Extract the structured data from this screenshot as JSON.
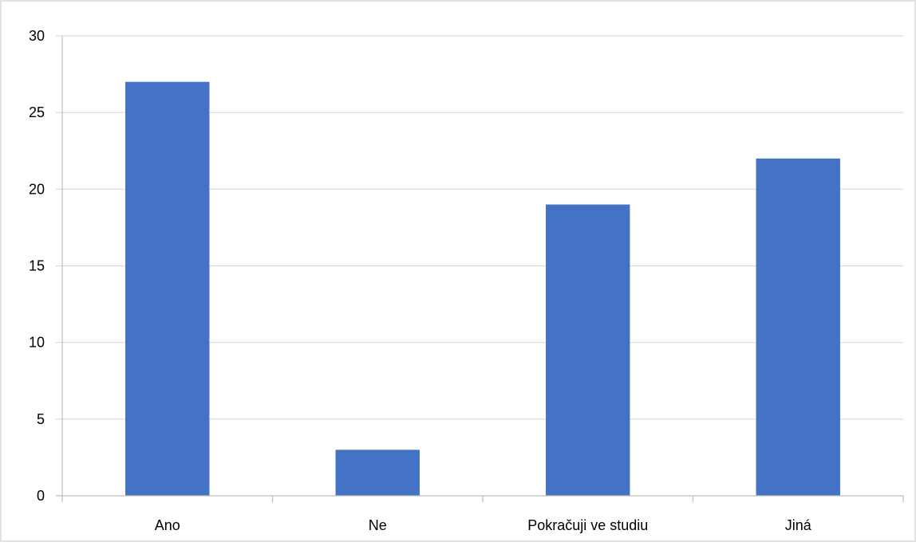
{
  "chart_data": {
    "type": "bar",
    "categories": [
      "Ano",
      "Ne",
      "Pokračuji ve studiu",
      "Jiná"
    ],
    "values": [
      27,
      3,
      19,
      22
    ],
    "title": "",
    "xlabel": "",
    "ylabel": "",
    "ylim": [
      0,
      30
    ],
    "yticks": [
      0,
      5,
      10,
      15,
      20,
      25,
      30
    ],
    "grid": true,
    "legend": "none",
    "bar_color": "#4472C4",
    "grid_color": "#D9D9D9",
    "axis_color": "#BFBFBF",
    "border_color": "#D9D9D9"
  }
}
